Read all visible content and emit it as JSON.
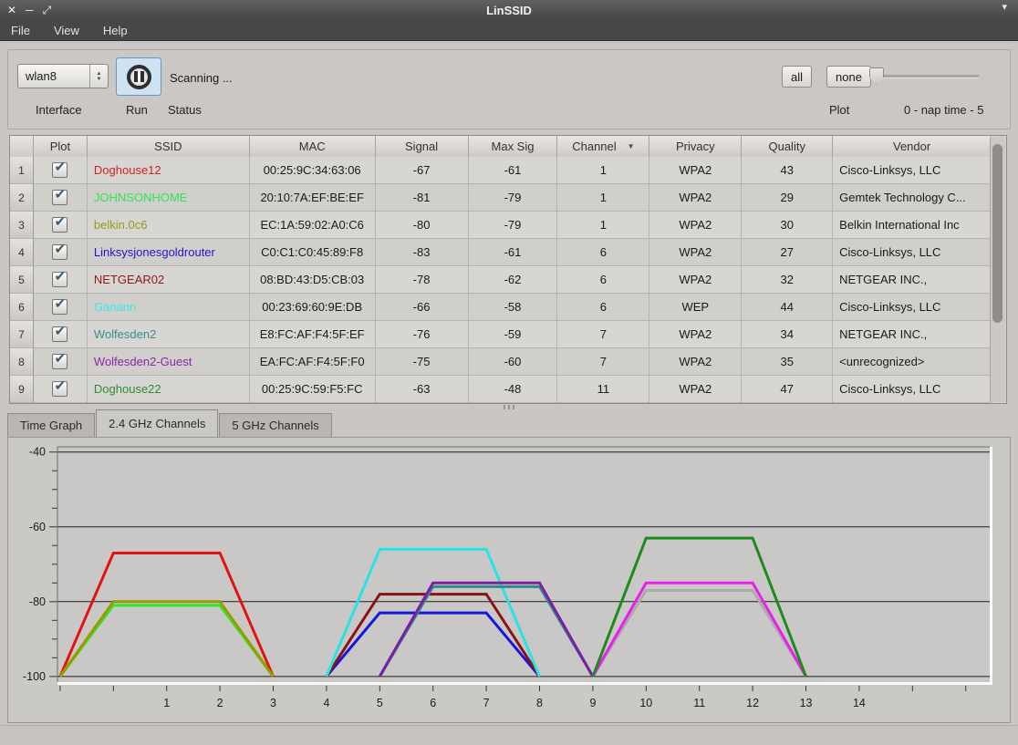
{
  "window": {
    "title": "LinSSID"
  },
  "menu": {
    "items": [
      "File",
      "View",
      "Help"
    ]
  },
  "toolbar": {
    "interface": {
      "value": "wlan8"
    },
    "status_text": "Scanning ...",
    "select_all": "all",
    "select_none": "none",
    "labels": {
      "interface": "Interface",
      "run": "Run",
      "status": "Status",
      "plot": "Plot",
      "nap": "0 - nap time - 5"
    },
    "nap_slider": {
      "min": 0,
      "max": 5,
      "value": 0
    }
  },
  "table": {
    "columns": [
      "Plot",
      "SSID",
      "MAC",
      "Signal",
      "Max Sig",
      "Channel",
      "Privacy",
      "Quality",
      "Vendor"
    ],
    "sort": {
      "column": "Channel",
      "direction": "desc"
    },
    "rows": [
      {
        "num": "1",
        "plot": true,
        "ssid": "Doghouse12",
        "ssid_color": "#d32020",
        "mac": "00:25:9C:34:63:06",
        "signal": "-67",
        "max_sig": "-61",
        "channel": "1",
        "privacy": "WPA2",
        "quality": "43",
        "vendor": "Cisco-Linksys, LLC"
      },
      {
        "num": "2",
        "plot": true,
        "ssid": "JOHNSONHOME",
        "ssid_color": "#2de655",
        "mac": "20:10:7A:EF:BE:EF",
        "signal": "-81",
        "max_sig": "-79",
        "channel": "1",
        "privacy": "WPA2",
        "quality": "29",
        "vendor": "Gemtek Technology C..."
      },
      {
        "num": "3",
        "plot": true,
        "ssid": "belkin.0c6",
        "ssid_color": "#97971c",
        "mac": "EC:1A:59:02:A0:C6",
        "signal": "-80",
        "max_sig": "-79",
        "channel": "1",
        "privacy": "WPA2",
        "quality": "30",
        "vendor": "Belkin International Inc"
      },
      {
        "num": "4",
        "plot": true,
        "ssid": "Linksysjonesgoldrouter",
        "ssid_color": "#2414cf",
        "mac": "C0:C1:C0:45:89:F8",
        "signal": "-83",
        "max_sig": "-61",
        "channel": "6",
        "privacy": "WPA2",
        "quality": "27",
        "vendor": "Cisco-Linksys, LLC"
      },
      {
        "num": "5",
        "plot": true,
        "ssid": "NETGEAR02",
        "ssid_color": "#8b1a1a",
        "mac": "08:BD:43:D5:CB:03",
        "signal": "-78",
        "max_sig": "-62",
        "channel": "6",
        "privacy": "WPA2",
        "quality": "32",
        "vendor": "NETGEAR INC.,"
      },
      {
        "num": "6",
        "plot": true,
        "ssid": "Ganann",
        "ssid_color": "#3ae9e9",
        "mac": "00:23:69:60:9E:DB",
        "signal": "-66",
        "max_sig": "-58",
        "channel": "6",
        "privacy": "WEP",
        "quality": "44",
        "vendor": "Cisco-Linksys, LLC"
      },
      {
        "num": "7",
        "plot": true,
        "ssid": "Wolfesden2",
        "ssid_color": "#3a8d8d",
        "mac": "E8:FC:AF:F4:5F:EF",
        "signal": "-76",
        "max_sig": "-59",
        "channel": "7",
        "privacy": "WPA2",
        "quality": "34",
        "vendor": "NETGEAR INC.,"
      },
      {
        "num": "8",
        "plot": true,
        "ssid": "Wolfesden2-Guest",
        "ssid_color": "#8b27a8",
        "mac": "EA:FC:AF:F4:5F:F0",
        "signal": "-75",
        "max_sig": "-60",
        "channel": "7",
        "privacy": "WPA2",
        "quality": "35",
        "vendor": "<unrecognized>"
      },
      {
        "num": "9",
        "plot": true,
        "ssid": "Doghouse22",
        "ssid_color": "#2e8b2e",
        "mac": "00:25:9C:59:F5:FC",
        "signal": "-63",
        "max_sig": "-48",
        "channel": "11",
        "privacy": "WPA2",
        "quality": "47",
        "vendor": "Cisco-Linksys, LLC"
      }
    ]
  },
  "tabs": [
    {
      "label": "Time Graph",
      "active": false
    },
    {
      "label": "2.4 GHz Channels",
      "active": true
    },
    {
      "label": "5 GHz Channels",
      "active": false
    }
  ],
  "chart_data": {
    "type": "line",
    "title": "",
    "xlabel": "",
    "ylabel": "",
    "xlim": [
      -1.05,
      16.45
    ],
    "ylim": [
      -101.5,
      -38.6
    ],
    "x_tick_labels": [
      1,
      2,
      3,
      4,
      5,
      6,
      7,
      8,
      9,
      10,
      11,
      12,
      13,
      14
    ],
    "y_tick_labels": [
      -40,
      -60,
      -80,
      -100
    ],
    "y_minor_tick_step": 5,
    "gridlines": "horizontal lines at -40,-60,-80,-100",
    "shape": "each network drawn as trapezoid: (ch-2,-100) -> (ch-1,signal) -> (ch+1,signal) -> (ch+2,-100)",
    "series": [
      {
        "name": "Doghouse12",
        "channel": 1,
        "signal": -67,
        "color": "#e01313"
      },
      {
        "name": "JOHNSONHOME",
        "channel": 1,
        "signal": -81,
        "color": "#2ce82c"
      },
      {
        "name": "belkin.0c6",
        "channel": 1,
        "signal": -80,
        "color": "#9a9a00"
      },
      {
        "name": "Linksysjonesgoldrouter",
        "channel": 6,
        "signal": -83,
        "color": "#1616dd"
      },
      {
        "name": "NETGEAR02",
        "channel": 6,
        "signal": -78,
        "color": "#8b1212"
      },
      {
        "name": "Ganann",
        "channel": 6,
        "signal": -66,
        "color": "#27e4e4"
      },
      {
        "name": "Wolfesden2",
        "channel": 7,
        "signal": -76,
        "color": "#2e8b8b"
      },
      {
        "name": "Wolfesden2-Guest",
        "channel": 7,
        "signal": -75,
        "color": "#7b1fa2"
      },
      {
        "name": "",
        "channel": 11,
        "signal": -77,
        "color": "#ababab"
      },
      {
        "name": "",
        "channel": 11,
        "signal": -75,
        "color": "#ea1fea"
      },
      {
        "name": "Doghouse22",
        "channel": 11,
        "signal": -63,
        "color": "#1d8a1d"
      }
    ]
  }
}
